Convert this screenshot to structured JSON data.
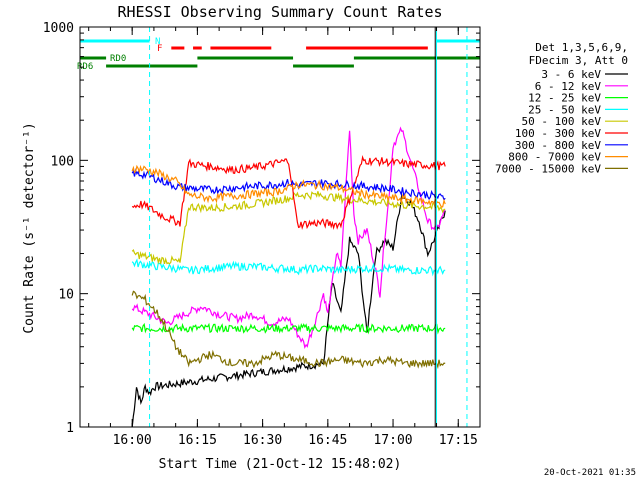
{
  "chart_data": {
    "type": "line",
    "title": "RHESSI Observing Summary Count Rates",
    "xlabel": "Start Time (21-Oct-12 15:48:02)",
    "ylabel": "Count Rate (s⁻¹ detector⁻¹)",
    "yscale": "log",
    "ylim": [
      1,
      1000
    ],
    "xlim_minutes": [
      0,
      92
    ],
    "x_unit": "minutes after 15:48:02",
    "y_ticks": [
      "1",
      "10",
      "100",
      "1000"
    ],
    "x_ticks": [
      {
        "label": "16:00",
        "value": 12
      },
      {
        "label": "16:15",
        "value": 27
      },
      {
        "label": "16:30",
        "value": 42
      },
      {
        "label": "16:45",
        "value": 57
      },
      {
        "label": "17:00",
        "value": 72
      },
      {
        "label": "17:15",
        "value": 87
      }
    ],
    "legend_header": [
      "Det 1,3,5,6,9,",
      "FDecim 3, Att 0"
    ],
    "series": [
      {
        "name": "3 - 6 keV",
        "color": "#000000",
        "x": [
          12,
          13,
          14,
          15,
          16,
          17,
          56,
          58,
          60,
          62,
          64,
          66,
          68,
          70,
          72,
          74,
          76,
          78,
          80,
          82,
          84
        ],
        "y": [
          1.0,
          2.0,
          1.5,
          2.0,
          1.8,
          2.0,
          3.0,
          12,
          7,
          25,
          20,
          5,
          20,
          25,
          22,
          55,
          48,
          35,
          20,
          28,
          42
        ]
      },
      {
        "name": "6 - 12 keV",
        "color": "#ff00ff",
        "x": [
          12,
          16,
          20,
          24,
          28,
          32,
          36,
          40,
          44,
          48,
          50,
          52,
          54,
          56,
          57,
          58,
          59,
          60,
          62,
          63,
          64,
          66,
          68,
          69,
          70,
          71,
          72,
          74,
          76,
          78,
          80,
          82,
          84
        ],
        "y": [
          8,
          7,
          6,
          7,
          8,
          7,
          6.5,
          7,
          6,
          6.5,
          5,
          4,
          6,
          10,
          7,
          12,
          20,
          16,
          170,
          40,
          25,
          30,
          15,
          10,
          25,
          50,
          130,
          170,
          100,
          60,
          35,
          30,
          42
        ]
      },
      {
        "name": "12 - 25 keV",
        "color": "#00ff00",
        "x": [
          12,
          84
        ],
        "y": [
          5.5,
          5.5
        ]
      },
      {
        "name": "25 - 50 keV",
        "color": "#00ffff",
        "x": [
          12,
          15,
          18,
          22,
          24,
          26,
          30,
          35,
          40,
          45,
          48,
          50,
          55,
          60,
          65,
          70,
          75,
          80,
          82,
          84
        ],
        "y": [
          17,
          16.5,
          16,
          15.5,
          15,
          15,
          15.5,
          16,
          16,
          15.5,
          15.5,
          15,
          15.5,
          15,
          15.5,
          15.5,
          15,
          15,
          15,
          15
        ]
      },
      {
        "name": "50 - 100 keV",
        "color": "#c8c800",
        "x": [
          12,
          15,
          18,
          22,
          23,
          25,
          30,
          35,
          40,
          45,
          48,
          50,
          55,
          60,
          65,
          70,
          75,
          80,
          84
        ],
        "y": [
          20,
          19,
          18,
          17.5,
          17,
          45,
          44,
          45,
          47,
          50,
          52,
          55,
          55,
          52,
          50,
          48,
          46,
          45,
          43
        ]
      },
      {
        "name": "100 - 300 keV",
        "color": "#ff0000",
        "x": [
          12,
          14,
          16,
          18,
          20,
          22,
          23,
          25,
          30,
          35,
          40,
          45,
          48,
          50,
          55,
          60,
          65,
          70,
          75,
          80,
          84
        ],
        "y": [
          45,
          47,
          44,
          40,
          37,
          35,
          34,
          95,
          90,
          85,
          88,
          95,
          100,
          33,
          34,
          33,
          100,
          98,
          94,
          92,
          90
        ]
      },
      {
        "name": "300 - 800 keV",
        "color": "#0000ff",
        "x": [
          12,
          15,
          18,
          22,
          25,
          30,
          35,
          40,
          45,
          48,
          50,
          55,
          60,
          65,
          70,
          75,
          80,
          84
        ],
        "y": [
          80,
          78,
          72,
          64,
          62,
          60,
          62,
          64,
          66,
          68,
          65,
          68,
          66,
          64,
          62,
          58,
          55,
          52
        ]
      },
      {
        "name": "800 - 7000 keV",
        "color": "#ff8c00",
        "x": [
          12,
          15,
          18,
          22,
          25,
          30,
          35,
          40,
          45,
          48,
          50,
          55,
          60,
          65,
          70,
          75,
          80,
          84
        ],
        "y": [
          87,
          86,
          80,
          70,
          55,
          52,
          54,
          56,
          58,
          62,
          66,
          65,
          62,
          56,
          53,
          51,
          49,
          47
        ]
      },
      {
        "name": "7000 - 15000 keV",
        "color": "#7f6f00",
        "x": [
          12,
          15,
          18,
          20,
          22,
          25,
          30,
          35,
          40,
          45,
          50,
          55,
          60,
          65,
          70,
          75,
          80,
          84
        ],
        "y": [
          10,
          9,
          7,
          5.5,
          4,
          3,
          3.5,
          3,
          3,
          3.5,
          3.2,
          3,
          3.2,
          3,
          3.2,
          3,
          3,
          3
        ]
      }
    ],
    "state_bars": [
      {
        "label": "N",
        "color": "#00ffff",
        "y_level": 0,
        "segments": [
          [
            0,
            16
          ],
          [
            82,
            92
          ]
        ]
      },
      {
        "label": "F",
        "color": "#ff0000",
        "y_level": 1,
        "segments": [
          [
            21,
            24
          ],
          [
            26,
            28
          ],
          [
            30,
            44
          ],
          [
            52,
            80
          ]
        ]
      },
      {
        "label": "RD0",
        "color": "#007f00",
        "y_level": 2,
        "segments": [
          [
            0,
            6
          ],
          [
            27,
            49
          ],
          [
            63,
            92
          ]
        ]
      },
      {
        "label": "RD6",
        "color": "#007f00",
        "y_level": 3,
        "segments": [
          [
            6,
            27
          ],
          [
            49,
            63
          ]
        ]
      }
    ],
    "vertical_markers": [
      {
        "color": "#00ffff",
        "style": "dashed",
        "x": 16
      },
      {
        "color": "#00ffff",
        "style": "solid",
        "x": 82
      },
      {
        "color": "#00ffff",
        "style": "dashed",
        "x": 89
      },
      {
        "color": "#000000",
        "style": "solid",
        "x": 81.7
      }
    ],
    "timestamp": "20-Oct-2021 01:35"
  }
}
